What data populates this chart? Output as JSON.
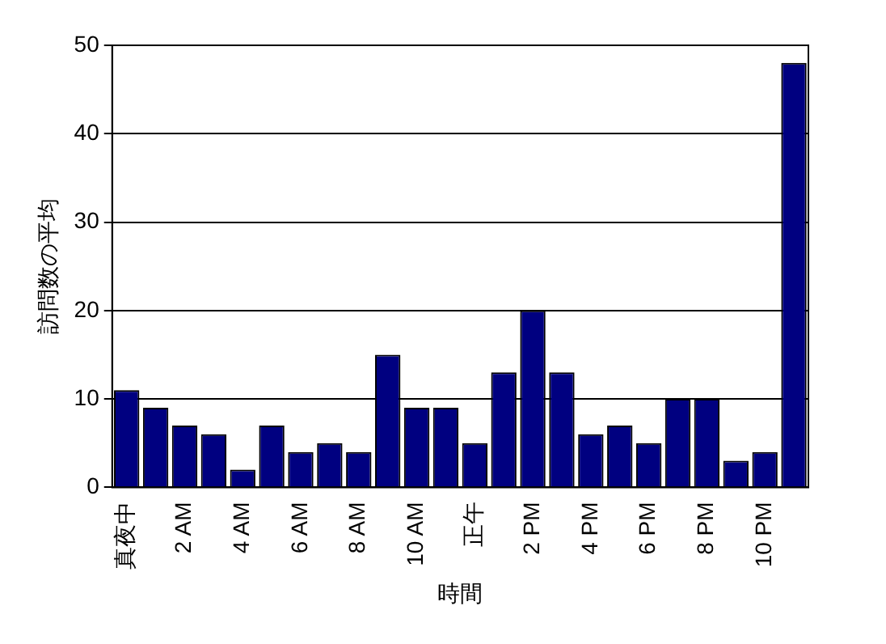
{
  "chart_data": {
    "type": "bar",
    "xlabel": "時間",
    "ylabel": "訪問数の平均",
    "categories": [
      "真夜中",
      null,
      "2 AM",
      null,
      "4 AM",
      null,
      "6 AM",
      null,
      "8 AM",
      null,
      "10 AM",
      null,
      "正午",
      null,
      "2 PM",
      null,
      "4 PM",
      null,
      "6 PM",
      null,
      "8 PM",
      null,
      "10 PM",
      null
    ],
    "values": [
      11,
      9,
      7,
      6,
      2,
      7,
      4,
      5,
      4,
      15,
      9,
      9,
      5,
      13,
      20,
      13,
      6,
      7,
      5,
      10,
      10,
      3,
      4,
      48
    ],
    "color": "#000080",
    "ylim": [
      0,
      50
    ],
    "yticks": [
      0,
      10,
      20,
      30,
      40,
      50
    ],
    "grid": "y",
    "legend": false
  }
}
